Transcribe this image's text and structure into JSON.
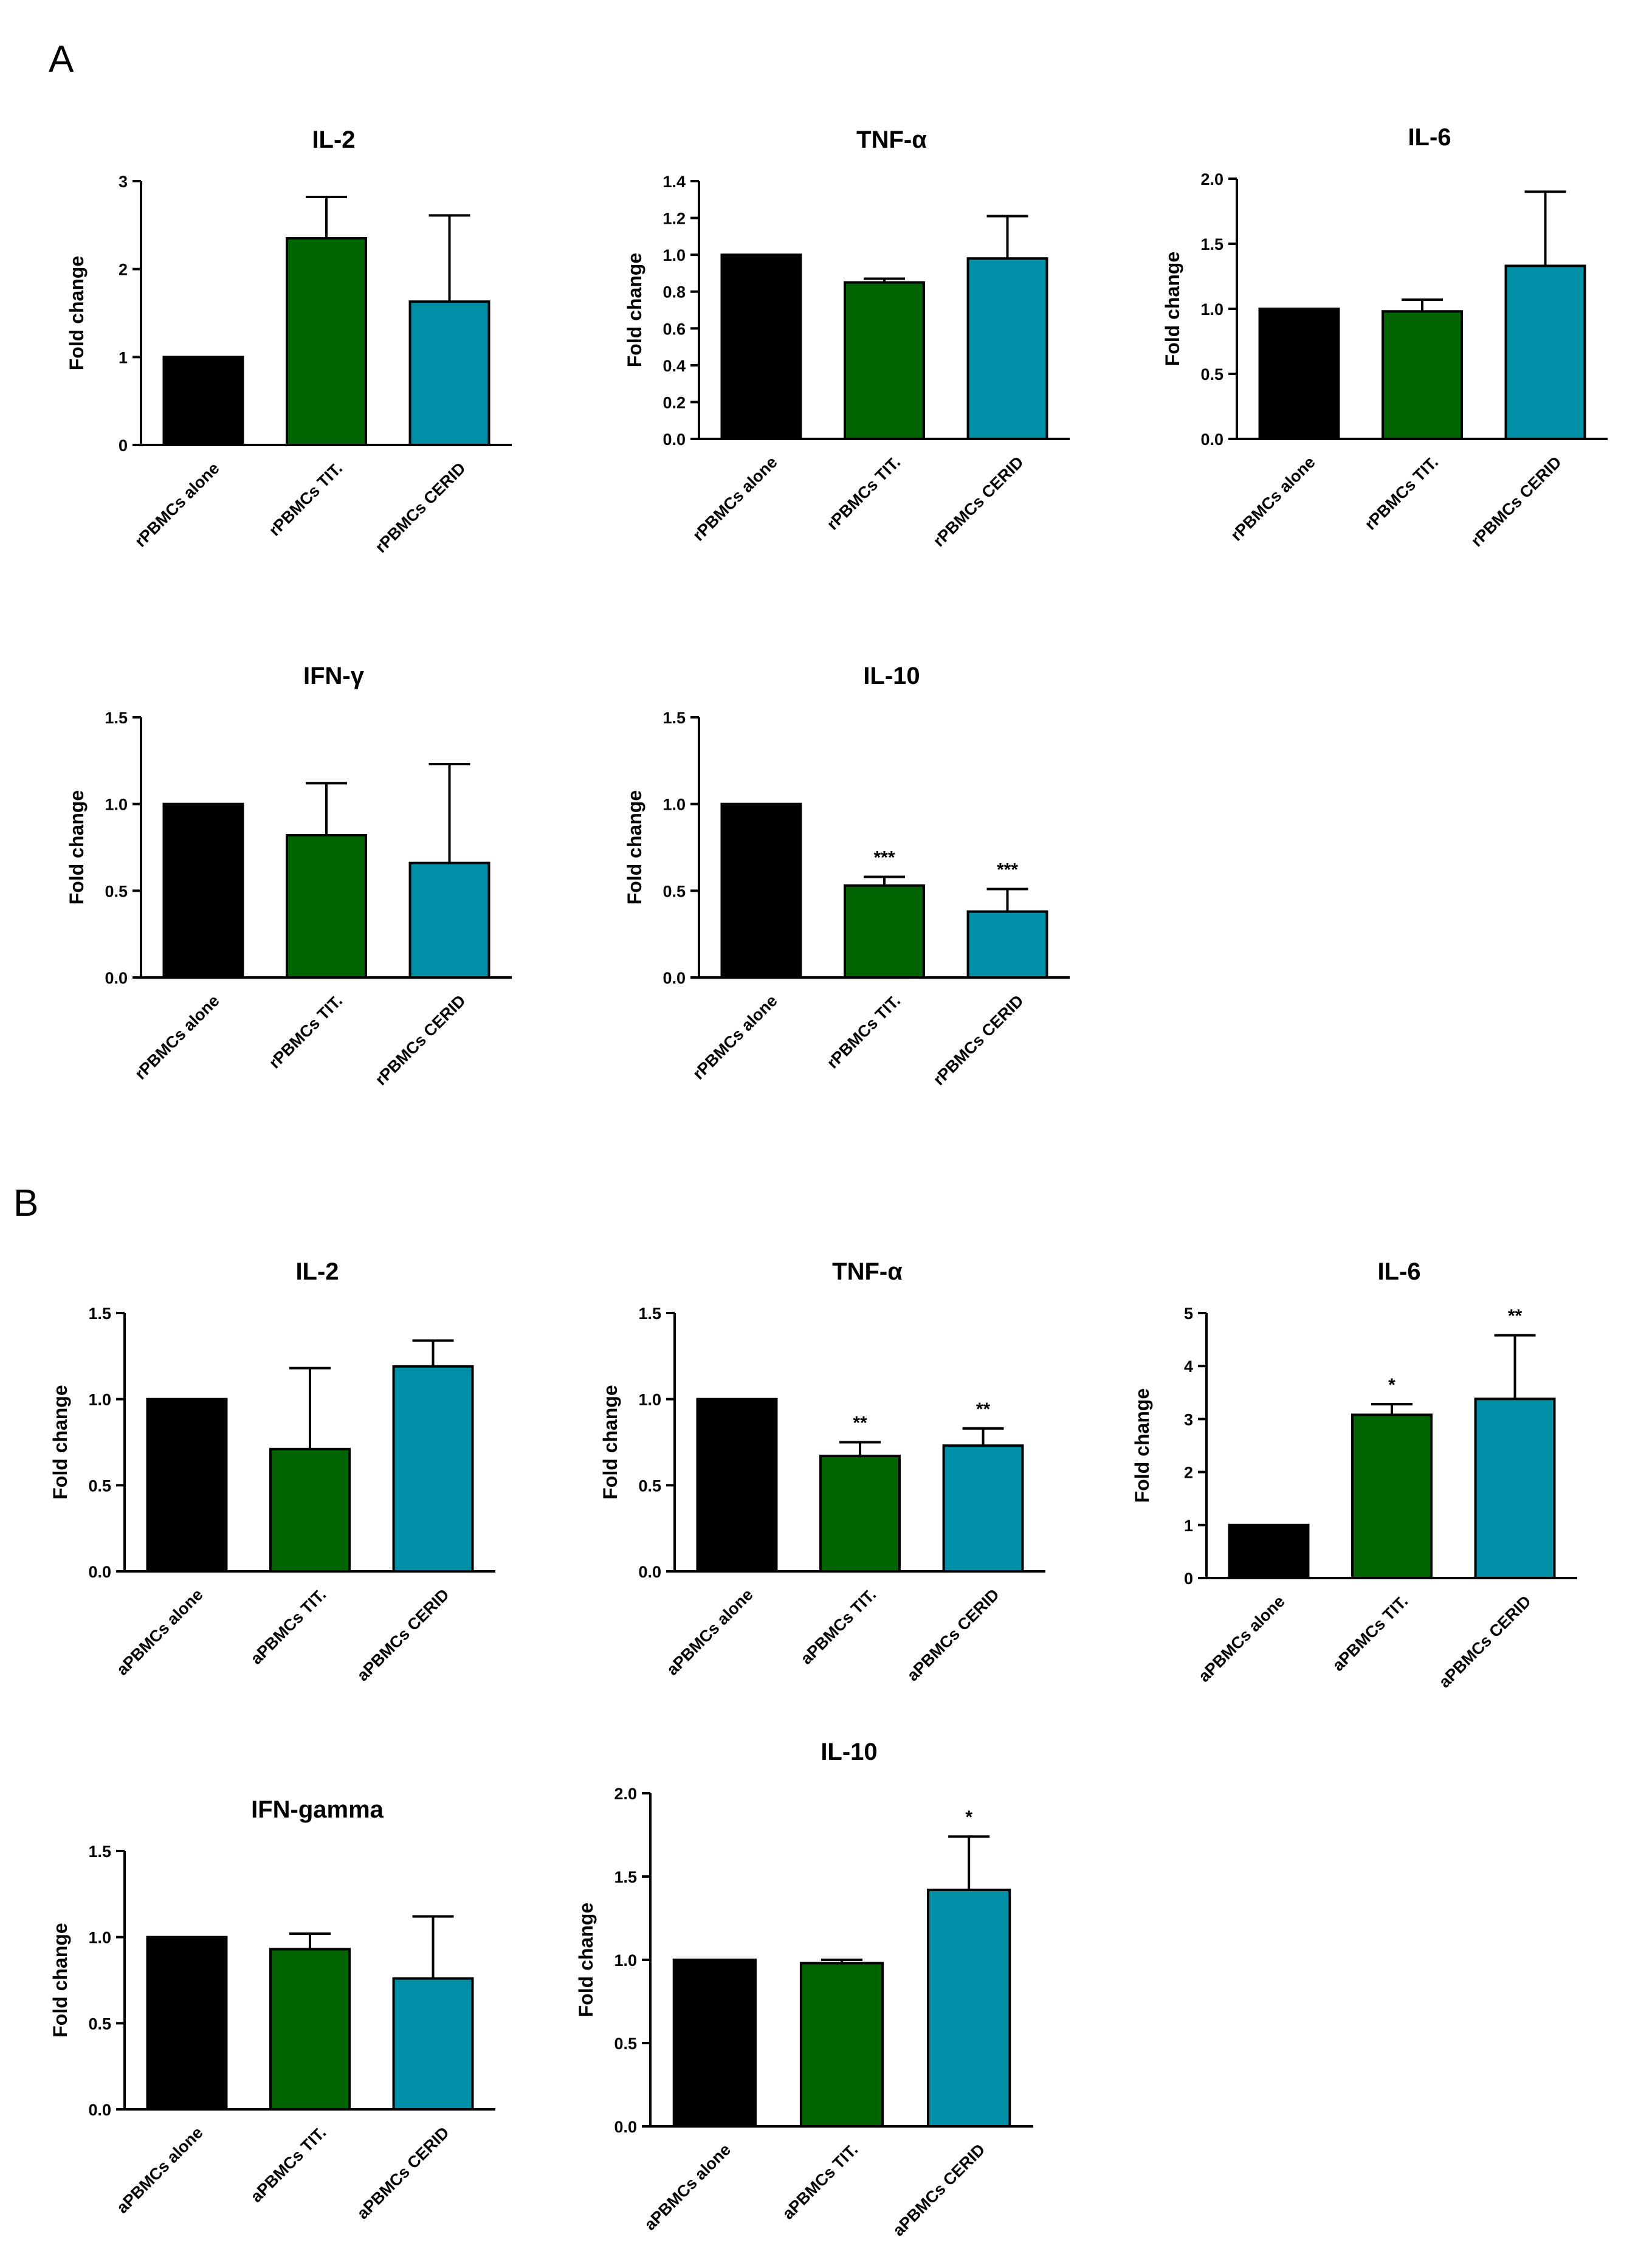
{
  "figure": {
    "panels": [
      {
        "label": "A"
      },
      {
        "label": "B"
      }
    ],
    "colors": {
      "alone": "#000000",
      "tit": "#006400",
      "cerid": "#0090a8",
      "outline": "#000000"
    }
  },
  "chart_data": [
    {
      "type": "bar",
      "panel": "A",
      "title": "IL-2",
      "ylabel": "Fold change",
      "categories": [
        "rPBMCs alone",
        "rPBMCs TIT.",
        "rPBMCs CERID"
      ],
      "values": [
        1.0,
        2.35,
        1.63
      ],
      "errors": [
        0,
        0.47,
        0.98
      ],
      "significance": [
        "",
        "",
        ""
      ],
      "ylim": [
        0,
        3
      ],
      "yticks": [
        0,
        1,
        2,
        3
      ],
      "ytick_labels": [
        "0",
        "1",
        "2",
        "3"
      ]
    },
    {
      "type": "bar",
      "panel": "A",
      "title": "TNF-α",
      "ylabel": "Fold change",
      "categories": [
        "rPBMCs alone",
        "rPBMCs TIT.",
        "rPBMCs CERID"
      ],
      "values": [
        1.0,
        0.85,
        0.98
      ],
      "errors": [
        0,
        0.02,
        0.23
      ],
      "significance": [
        "",
        "",
        ""
      ],
      "ylim": [
        0,
        1.4
      ],
      "yticks": [
        0,
        0.2,
        0.4,
        0.6,
        0.8,
        1.0,
        1.2,
        1.4
      ],
      "ytick_labels": [
        "0.0",
        "0.2",
        "0.4",
        "0.6",
        "0.8",
        "1.0",
        "1.2",
        "1.4"
      ]
    },
    {
      "type": "bar",
      "panel": "A",
      "title": "IL-6",
      "ylabel": "Fold change",
      "categories": [
        "rPBMCs alone",
        "rPBMCs TIT.",
        "rPBMCs CERID"
      ],
      "values": [
        1.0,
        0.98,
        1.33
      ],
      "errors": [
        0,
        0.09,
        0.57
      ],
      "significance": [
        "",
        "",
        ""
      ],
      "ylim": [
        0,
        2.0
      ],
      "yticks": [
        0,
        0.5,
        1.0,
        1.5,
        2.0
      ],
      "ytick_labels": [
        "0.0",
        "0.5",
        "1.0",
        "1.5",
        "2.0"
      ]
    },
    {
      "type": "bar",
      "panel": "A",
      "title": "IFN-γ",
      "ylabel": "Fold change",
      "categories": [
        "rPBMCs alone",
        "rPBMCs TIT.",
        "rPBMCs CERID"
      ],
      "values": [
        1.0,
        0.82,
        0.66
      ],
      "errors": [
        0,
        0.3,
        0.57
      ],
      "significance": [
        "",
        "",
        ""
      ],
      "ylim": [
        0,
        1.5
      ],
      "yticks": [
        0,
        0.5,
        1.0,
        1.5
      ],
      "ytick_labels": [
        "0.0",
        "0.5",
        "1.0",
        "1.5"
      ]
    },
    {
      "type": "bar",
      "panel": "A",
      "title": "IL-10",
      "ylabel": "Fold change",
      "categories": [
        "rPBMCs alone",
        "rPBMCs TIT.",
        "rPBMCs CERID"
      ],
      "values": [
        1.0,
        0.53,
        0.38
      ],
      "errors": [
        0,
        0.05,
        0.13
      ],
      "significance": [
        "",
        "***",
        "***"
      ],
      "ylim": [
        0,
        1.5
      ],
      "yticks": [
        0,
        0.5,
        1.0,
        1.5
      ],
      "ytick_labels": [
        "0.0",
        "0.5",
        "1.0",
        "1.5"
      ]
    },
    {
      "type": "bar",
      "panel": "B",
      "title": "IL-2",
      "ylabel": "Fold change",
      "categories": [
        "aPBMCs alone",
        "aPBMCs TIT.",
        "aPBMCs CERID"
      ],
      "values": [
        1.0,
        0.71,
        1.19
      ],
      "errors": [
        0,
        0.47,
        0.15
      ],
      "significance": [
        "",
        "",
        ""
      ],
      "ylim": [
        0,
        1.5
      ],
      "yticks": [
        0,
        0.5,
        1.0,
        1.5
      ],
      "ytick_labels": [
        "0.0",
        "0.5",
        "1.0",
        "1.5"
      ]
    },
    {
      "type": "bar",
      "panel": "B",
      "title": "TNF-α",
      "ylabel": "Fold change",
      "categories": [
        "aPBMCs alone",
        "aPBMCs TIT.",
        "aPBMCs CERID"
      ],
      "values": [
        1.0,
        0.67,
        0.73
      ],
      "errors": [
        0,
        0.08,
        0.1
      ],
      "significance": [
        "",
        "**",
        "**"
      ],
      "ylim": [
        0,
        1.5
      ],
      "yticks": [
        0,
        0.5,
        1.0,
        1.5
      ],
      "ytick_labels": [
        "0.0",
        "0.5",
        "1.0",
        "1.5"
      ]
    },
    {
      "type": "bar",
      "panel": "B",
      "title": "IL-6",
      "ylabel": "Fold change",
      "categories": [
        "aPBMCs alone",
        "aPBMCs TIT.",
        "aPBMCs CERID"
      ],
      "values": [
        1.0,
        3.08,
        3.38
      ],
      "errors": [
        0,
        0.2,
        1.2
      ],
      "significance": [
        "",
        "*",
        "**"
      ],
      "ylim": [
        0,
        5
      ],
      "yticks": [
        0,
        1,
        2,
        3,
        4,
        5
      ],
      "ytick_labels": [
        "0",
        "1",
        "2",
        "3",
        "4",
        "5"
      ]
    },
    {
      "type": "bar",
      "panel": "B",
      "title": "IFN-gamma",
      "ylabel": "Fold change",
      "categories": [
        "aPBMCs alone",
        "aPBMCs TIT.",
        "aPBMCs CERID"
      ],
      "values": [
        1.0,
        0.93,
        0.76
      ],
      "errors": [
        0,
        0.09,
        0.36
      ],
      "significance": [
        "",
        "",
        ""
      ],
      "ylim": [
        0,
        1.5
      ],
      "yticks": [
        0,
        0.5,
        1.0,
        1.5
      ],
      "ytick_labels": [
        "0.0",
        "0.5",
        "1.0",
        "1.5"
      ]
    },
    {
      "type": "bar",
      "panel": "B",
      "title": "IL-10",
      "ylabel": "Fold change",
      "categories": [
        "aPBMCs alone",
        "aPBMCs TIT.",
        "aPBMCs CERID"
      ],
      "values": [
        1.0,
        0.98,
        1.42
      ],
      "errors": [
        0,
        0.02,
        0.32
      ],
      "significance": [
        "",
        "",
        "*"
      ],
      "ylim": [
        0,
        2.0
      ],
      "yticks": [
        0,
        0.5,
        1.0,
        1.5,
        2.0
      ],
      "ytick_labels": [
        "0.0",
        "0.5",
        "1.0",
        "1.5",
        "2.0"
      ]
    }
  ]
}
